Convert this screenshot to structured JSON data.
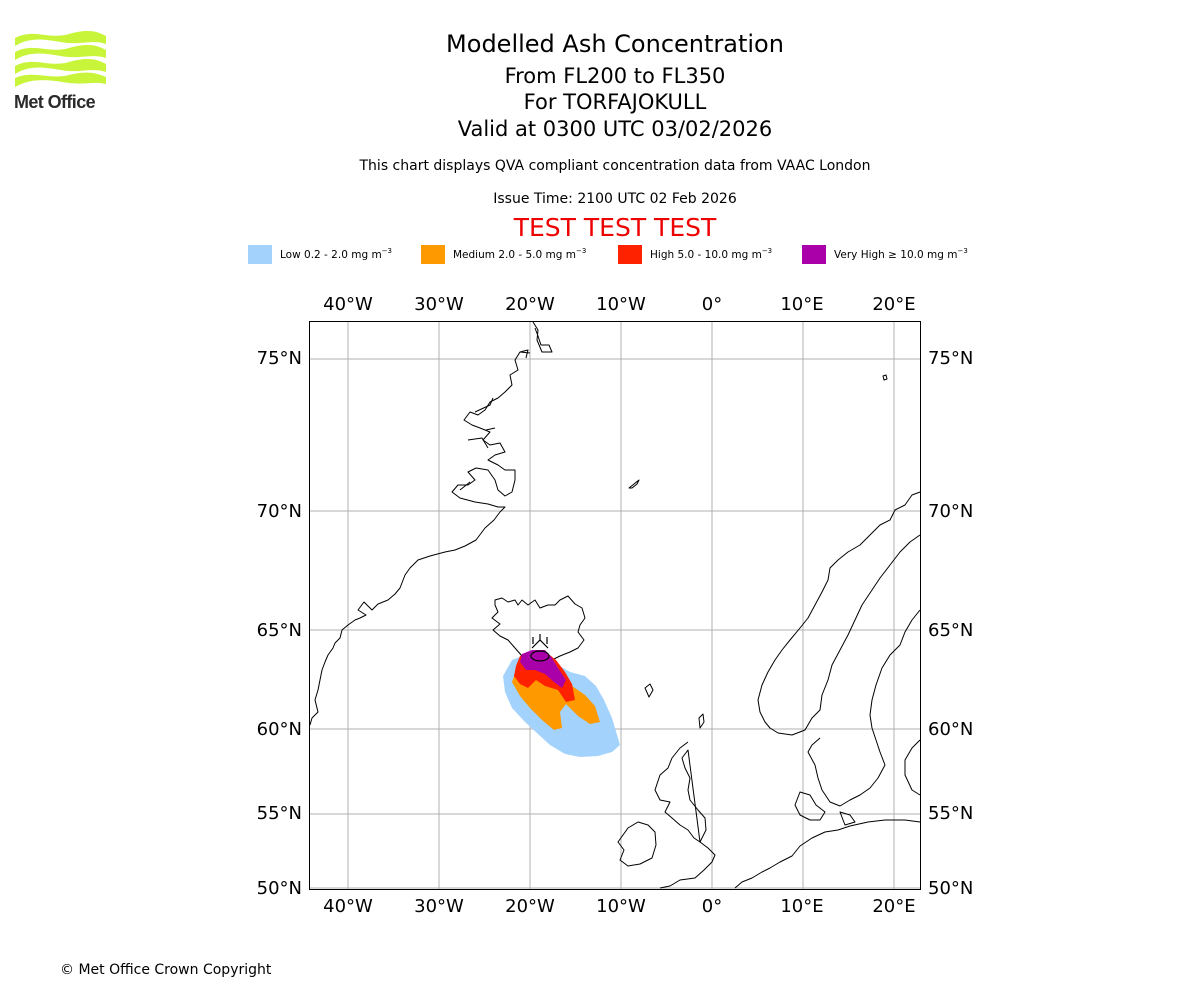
{
  "logo": {
    "text": "Met Office",
    "color": "#c8f53a"
  },
  "header": {
    "title": "Modelled Ash Concentration",
    "levels": "From FL200 to FL350",
    "volcano": "For TORFAJOKULL",
    "valid": "Valid at 0300 UTC 03/02/2026",
    "description": "This chart displays QVA compliant concentration data from VAAC London",
    "issue_time": "Issue Time: 2100 UTC 02 Feb 2026",
    "test_banner": "TEST TEST TEST"
  },
  "legend": [
    {
      "label": "Low 0.2 - 2.0 mg m",
      "unit_exp": "−3",
      "color": "#a3d3fc"
    },
    {
      "label": "Medium 2.0 - 5.0 mg m",
      "unit_exp": "−3",
      "color": "#ff9900"
    },
    {
      "label": "High 5.0 - 10.0 mg m",
      "unit_exp": "−3",
      "color": "#ff2200"
    },
    {
      "label": "Very High  ≥  10.0 mg m",
      "unit_exp": "−3",
      "color": "#aa00aa"
    }
  ],
  "map": {
    "lon_ticks": [
      "40°W",
      "30°W",
      "20°W",
      "10°W",
      "0°",
      "10°E",
      "20°E"
    ],
    "lat_ticks": [
      "75°N",
      "70°N",
      "65°N",
      "60°N",
      "55°N",
      "50°N"
    ],
    "volcano_marker": "volcano-symbol"
  },
  "footer": {
    "copyright": "© Met Office Crown Copyright"
  }
}
